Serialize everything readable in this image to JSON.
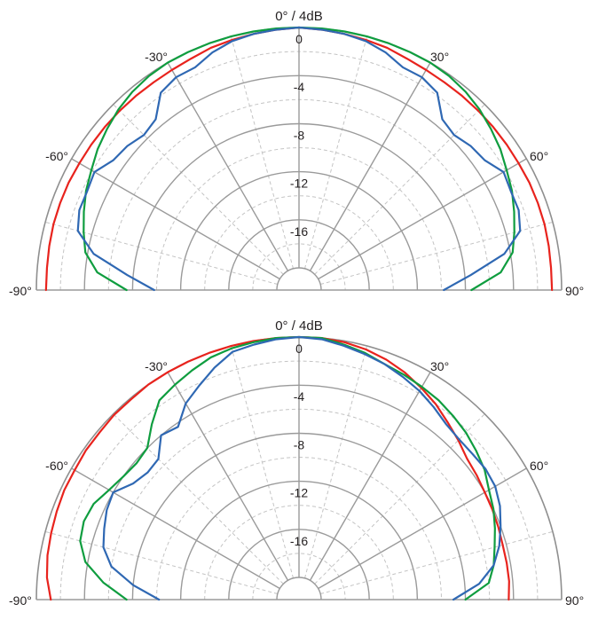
{
  "chart_data": [
    {
      "type": "polar",
      "angle_range_deg": [
        -90,
        90
      ],
      "title": "0° / 4dB",
      "angle_tick_labels": [
        "-90°",
        "-60°",
        "-30°",
        "30°",
        "60°",
        "90°"
      ],
      "radial_tick_labels": [
        "0",
        "-4",
        "-8",
        "-12",
        "-16"
      ],
      "r_range_db": [
        -20,
        0
      ],
      "major_ring_step_db": 4,
      "major_spoke_step_deg": 30,
      "grid": true,
      "colors": {
        "red": "#e8231d",
        "green": "#0f9d3f",
        "blue": "#2f68b3"
      },
      "series": [
        {
          "color": "red",
          "angles": [
            -90,
            -85,
            -80,
            -75,
            -70,
            -65,
            -60,
            -55,
            -50,
            -45,
            -40,
            -35,
            -30,
            -25,
            -20,
            -15,
            -10,
            -5,
            0,
            5,
            10,
            15,
            20,
            25,
            30,
            35,
            40,
            45,
            50,
            55,
            60,
            65,
            70,
            75,
            80,
            85,
            90
          ],
          "values_db": [
            -0.8,
            -0.8,
            -0.75,
            -0.7,
            -0.7,
            -0.7,
            -0.75,
            -0.75,
            -0.75,
            -0.75,
            -0.75,
            -0.75,
            -0.7,
            -0.6,
            -0.4,
            -0.3,
            -0.2,
            -0.1,
            0,
            -0.1,
            -0.2,
            -0.3,
            -0.4,
            -0.6,
            -0.7,
            -0.75,
            -0.75,
            -0.75,
            -0.75,
            -0.75,
            -0.75,
            -0.7,
            -0.7,
            -0.7,
            -0.75,
            -0.8,
            -0.8
          ]
        },
        {
          "color": "green",
          "angles": [
            -90,
            -85,
            -80,
            -75,
            -70,
            -65,
            -60,
            -55,
            -50,
            -45,
            -40,
            -35,
            -30,
            -25,
            -20,
            -15,
            -10,
            -5,
            0,
            5,
            10,
            15,
            20,
            25,
            30,
            35,
            40,
            45,
            50,
            55,
            60,
            65,
            70,
            75,
            80,
            85,
            90
          ],
          "values_db": [
            -7.5,
            -5,
            -3.8,
            -3.3,
            -2.8,
            -2.3,
            -1.9,
            -1.4,
            -1.0,
            -0.6,
            -0.3,
            -0.1,
            0,
            0,
            0,
            0,
            0,
            0,
            0,
            0,
            0,
            0,
            0,
            0,
            0,
            -0.1,
            -0.3,
            -0.6,
            -1.0,
            -1.4,
            -1.9,
            -2.3,
            -2.8,
            -3.3,
            -3.8,
            -5,
            -7.5
          ]
        },
        {
          "color": "blue",
          "angles": [
            -90,
            -85,
            -80,
            -75,
            -70,
            -65,
            -60,
            -55,
            -50,
            -45,
            -40,
            -35,
            -30,
            -25,
            -20,
            -15,
            -10,
            -5,
            0,
            5,
            10,
            15,
            20,
            25,
            30,
            35,
            40,
            45,
            50,
            55,
            60,
            65,
            70,
            75,
            80,
            85,
            90
          ],
          "values_db": [
            -9.8,
            -7.5,
            -4.5,
            -2.8,
            -2.4,
            -2.4,
            -2.2,
            -3.0,
            -3.2,
            -3.6,
            -3.3,
            -1.8,
            -1.4,
            -1.4,
            -0.8,
            -0.4,
            -0.2,
            -0.1,
            0,
            -0.1,
            -0.2,
            -0.4,
            -0.8,
            -1.4,
            -1.4,
            -1.8,
            -3.3,
            -3.6,
            -3.2,
            -3.0,
            -2.2,
            -2.4,
            -2.4,
            -2.8,
            -4.5,
            -7.5,
            -9.8
          ]
        }
      ]
    },
    {
      "type": "polar",
      "angle_range_deg": [
        -90,
        90
      ],
      "title": "0° / 4dB",
      "angle_tick_labels": [
        "-90°",
        "-60°",
        "-30°",
        "30°",
        "60°",
        "90°"
      ],
      "radial_tick_labels": [
        "0",
        "-4",
        "-8",
        "-12",
        "-16"
      ],
      "r_range_db": [
        -20,
        0
      ],
      "major_ring_step_db": 4,
      "major_spoke_step_deg": 30,
      "grid": true,
      "colors": {
        "red": "#e8231d",
        "green": "#0f9d3f",
        "blue": "#2f68b3"
      },
      "series": [
        {
          "color": "red",
          "angles": [
            -90,
            -85,
            -80,
            -75,
            -70,
            -65,
            -60,
            -55,
            -50,
            -45,
            -40,
            -35,
            -30,
            -25,
            -20,
            -15,
            -10,
            -5,
            0,
            5,
            10,
            15,
            20,
            25,
            30,
            35,
            40,
            45,
            50,
            55,
            60,
            65,
            70,
            75,
            80,
            85,
            90
          ],
          "values_db": [
            -1.2,
            -0.8,
            -0.6,
            -0.5,
            -0.4,
            -0.3,
            -0.3,
            -0.2,
            -0.2,
            -0.1,
            -0.1,
            0,
            0,
            0,
            0,
            0,
            0,
            0,
            0,
            0,
            -0.1,
            -0.3,
            -0.6,
            -1.0,
            -1.5,
            -2.0,
            -2.6,
            -3.1,
            -3.6,
            -3.8,
            -4.0,
            -4.1,
            -4.2,
            -4.3,
            -4.3,
            -4.3,
            -4.4
          ]
        },
        {
          "color": "green",
          "angles": [
            -90,
            -85,
            -80,
            -75,
            -70,
            -65,
            -60,
            -55,
            -50,
            -45,
            -40,
            -35,
            -30,
            -25,
            -20,
            -15,
            -10,
            -5,
            0,
            5,
            10,
            15,
            20,
            25,
            30,
            35,
            40,
            45,
            50,
            55,
            60,
            65,
            70,
            75,
            80,
            85,
            90
          ],
          "values_db": [
            -7.5,
            -5.5,
            -3.8,
            -3.0,
            -2.8,
            -3.0,
            -3.6,
            -4.0,
            -4.2,
            -4.0,
            -2.8,
            -1.6,
            -1.2,
            -0.8,
            -0.4,
            -0.2,
            -0.1,
            0,
            0,
            0,
            -0.3,
            -0.6,
            -1.0,
            -1.2,
            -1.4,
            -1.6,
            -1.9,
            -2.2,
            -2.6,
            -3.0,
            -3.6,
            -4.0,
            -4.5,
            -5.0,
            -5.4,
            -6.0,
            -8.0
          ]
        },
        {
          "color": "blue",
          "angles": [
            -90,
            -85,
            -80,
            -75,
            -70,
            -65,
            -60,
            -55,
            -50,
            -45,
            -40,
            -35,
            -30,
            -25,
            -20,
            -15,
            -10,
            -5,
            0,
            5,
            10,
            15,
            20,
            25,
            30,
            35,
            40,
            45,
            50,
            55,
            60,
            65,
            70,
            75,
            80,
            85,
            90
          ],
          "values_db": [
            -10.2,
            -8.0,
            -6.0,
            -5.0,
            -4.6,
            -4.2,
            -4.0,
            -5.0,
            -5.4,
            -5.3,
            -4.0,
            -4.3,
            -3.0,
            -2.2,
            -1.3,
            -0.5,
            -0.3,
            -0.1,
            0,
            -0.1,
            -0.4,
            -0.7,
            -1.0,
            -1.4,
            -1.8,
            -2.3,
            -2.8,
            -3.0,
            -3.0,
            -2.9,
            -3.0,
            -3.4,
            -4.0,
            -4.6,
            -5.4,
            -6.8,
            -9.0
          ]
        }
      ]
    }
  ]
}
